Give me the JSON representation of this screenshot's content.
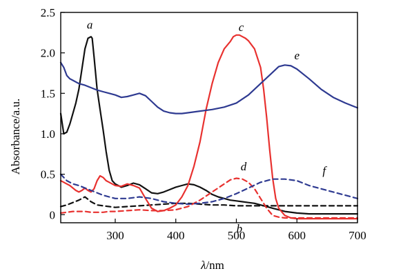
{
  "chart_data": {
    "type": "line",
    "xlabel_italic": "λ",
    "xlabel_rest": "/nm",
    "ylabel": "Absorbance/a.u.",
    "xlim": [
      210,
      700
    ],
    "ylim": [
      -0.1,
      2.5
    ],
    "x_ticks": [
      300,
      400,
      500,
      600,
      700
    ],
    "y_ticks": [
      0,
      0.5,
      1.0,
      1.5,
      2.0,
      2.5
    ],
    "x_tick_labels": [
      "300",
      "400",
      "500",
      "600",
      "700"
    ],
    "y_tick_labels": [
      "0",
      "0.5",
      "1.0",
      "1.5",
      "2.0",
      "2.5"
    ],
    "grid": false,
    "series": [
      {
        "name": "a",
        "color": "#111111",
        "dashed": false,
        "label_at": [
          258,
          2.35
        ],
        "x": [
          210,
          215,
          220,
          225,
          230,
          235,
          240,
          245,
          250,
          255,
          260,
          262,
          265,
          270,
          275,
          280,
          285,
          290,
          295,
          300,
          310,
          320,
          330,
          340,
          350,
          360,
          370,
          380,
          390,
          400,
          410,
          420,
          430,
          440,
          450,
          460,
          470,
          480,
          490,
          500,
          510,
          520,
          530,
          540,
          550,
          560,
          570,
          580,
          600,
          620,
          650,
          680,
          700
        ],
        "y": [
          1.25,
          1.0,
          1.02,
          1.12,
          1.25,
          1.38,
          1.55,
          1.8,
          2.05,
          2.18,
          2.2,
          2.18,
          1.95,
          1.55,
          1.3,
          1.05,
          0.78,
          0.55,
          0.42,
          0.38,
          0.34,
          0.36,
          0.39,
          0.37,
          0.32,
          0.27,
          0.26,
          0.28,
          0.31,
          0.34,
          0.36,
          0.38,
          0.37,
          0.34,
          0.3,
          0.25,
          0.22,
          0.2,
          0.18,
          0.17,
          0.16,
          0.15,
          0.14,
          0.12,
          0.1,
          0.08,
          0.06,
          0.04,
          0.02,
          0.01,
          0.01,
          0.01,
          0.01
        ]
      },
      {
        "name": "b",
        "color": "#111111",
        "dashed": true,
        "label_at": [
          505,
          -0.17
        ],
        "x": [
          210,
          220,
          230,
          240,
          250,
          260,
          270,
          280,
          290,
          300,
          320,
          340,
          360,
          380,
          400,
          420,
          440,
          460,
          480,
          500,
          520,
          540,
          560,
          580,
          600,
          620,
          650,
          700
        ],
        "y": [
          0.1,
          0.12,
          0.15,
          0.18,
          0.22,
          0.16,
          0.12,
          0.11,
          0.1,
          0.09,
          0.1,
          0.11,
          0.12,
          0.13,
          0.14,
          0.14,
          0.13,
          0.12,
          0.12,
          0.11,
          0.11,
          0.11,
          0.11,
          0.11,
          0.11,
          0.11,
          0.11,
          0.11
        ]
      },
      {
        "name": "c",
        "color": "#e8312f",
        "dashed": false,
        "label_at": [
          508,
          2.32
        ],
        "x": [
          210,
          215,
          220,
          225,
          230,
          235,
          240,
          245,
          250,
          255,
          260,
          265,
          270,
          275,
          280,
          285,
          290,
          295,
          300,
          310,
          320,
          330,
          340,
          350,
          360,
          370,
          380,
          390,
          400,
          410,
          420,
          430,
          440,
          450,
          460,
          470,
          480,
          490,
          495,
          500,
          505,
          510,
          515,
          520,
          530,
          540,
          545,
          550,
          555,
          560,
          565,
          570,
          580,
          590,
          600,
          620,
          650,
          700
        ],
        "y": [
          0.42,
          0.4,
          0.38,
          0.36,
          0.33,
          0.3,
          0.28,
          0.3,
          0.33,
          0.3,
          0.28,
          0.32,
          0.42,
          0.48,
          0.46,
          0.42,
          0.4,
          0.38,
          0.36,
          0.35,
          0.38,
          0.36,
          0.33,
          0.2,
          0.08,
          0.04,
          0.05,
          0.08,
          0.12,
          0.22,
          0.36,
          0.6,
          0.9,
          1.3,
          1.62,
          1.88,
          2.05,
          2.14,
          2.2,
          2.22,
          2.22,
          2.2,
          2.18,
          2.15,
          2.05,
          1.82,
          1.55,
          1.2,
          0.8,
          0.45,
          0.2,
          0.08,
          -0.01,
          -0.04,
          -0.05,
          -0.05,
          -0.05,
          -0.05
        ]
      },
      {
        "name": "d",
        "color": "#e8312f",
        "dashed": true,
        "label_at": [
          512,
          0.6
        ],
        "x": [
          210,
          220,
          230,
          240,
          250,
          260,
          270,
          280,
          290,
          300,
          320,
          340,
          360,
          380,
          400,
          420,
          440,
          460,
          480,
          490,
          500,
          510,
          520,
          530,
          540,
          550,
          560,
          570,
          580,
          590,
          600,
          620,
          650,
          700
        ],
        "y": [
          0.02,
          0.03,
          0.04,
          0.04,
          0.04,
          0.03,
          0.03,
          0.03,
          0.04,
          0.04,
          0.05,
          0.06,
          0.05,
          0.05,
          0.06,
          0.1,
          0.18,
          0.28,
          0.38,
          0.43,
          0.45,
          0.44,
          0.4,
          0.32,
          0.2,
          0.08,
          -0.01,
          -0.03,
          -0.04,
          -0.04,
          -0.04,
          -0.04,
          -0.04,
          -0.04
        ]
      },
      {
        "name": "e",
        "color": "#2e3a91",
        "dashed": false,
        "label_at": [
          600,
          1.97
        ],
        "x": [
          210,
          215,
          220,
          225,
          230,
          240,
          250,
          260,
          270,
          280,
          290,
          300,
          310,
          320,
          330,
          340,
          350,
          360,
          370,
          380,
          390,
          400,
          410,
          420,
          440,
          460,
          480,
          500,
          520,
          540,
          560,
          570,
          580,
          590,
          600,
          620,
          640,
          660,
          680,
          700
        ],
        "y": [
          1.88,
          1.82,
          1.72,
          1.68,
          1.66,
          1.62,
          1.6,
          1.57,
          1.54,
          1.52,
          1.5,
          1.48,
          1.45,
          1.46,
          1.48,
          1.5,
          1.47,
          1.4,
          1.33,
          1.28,
          1.26,
          1.25,
          1.25,
          1.26,
          1.28,
          1.3,
          1.33,
          1.38,
          1.48,
          1.62,
          1.76,
          1.83,
          1.85,
          1.84,
          1.8,
          1.68,
          1.55,
          1.45,
          1.38,
          1.32
        ]
      },
      {
        "name": "f",
        "color": "#2e3a91",
        "dashed": true,
        "label_at": [
          645,
          0.55
        ],
        "x": [
          210,
          220,
          230,
          240,
          250,
          260,
          270,
          280,
          290,
          300,
          320,
          340,
          360,
          380,
          400,
          420,
          440,
          460,
          480,
          500,
          520,
          540,
          560,
          580,
          600,
          620,
          650,
          680,
          700
        ],
        "y": [
          0.5,
          0.42,
          0.38,
          0.36,
          0.33,
          0.3,
          0.27,
          0.24,
          0.22,
          0.2,
          0.2,
          0.22,
          0.2,
          0.16,
          0.14,
          0.13,
          0.14,
          0.16,
          0.2,
          0.26,
          0.33,
          0.4,
          0.44,
          0.44,
          0.42,
          0.36,
          0.3,
          0.24,
          0.2
        ]
      }
    ]
  }
}
